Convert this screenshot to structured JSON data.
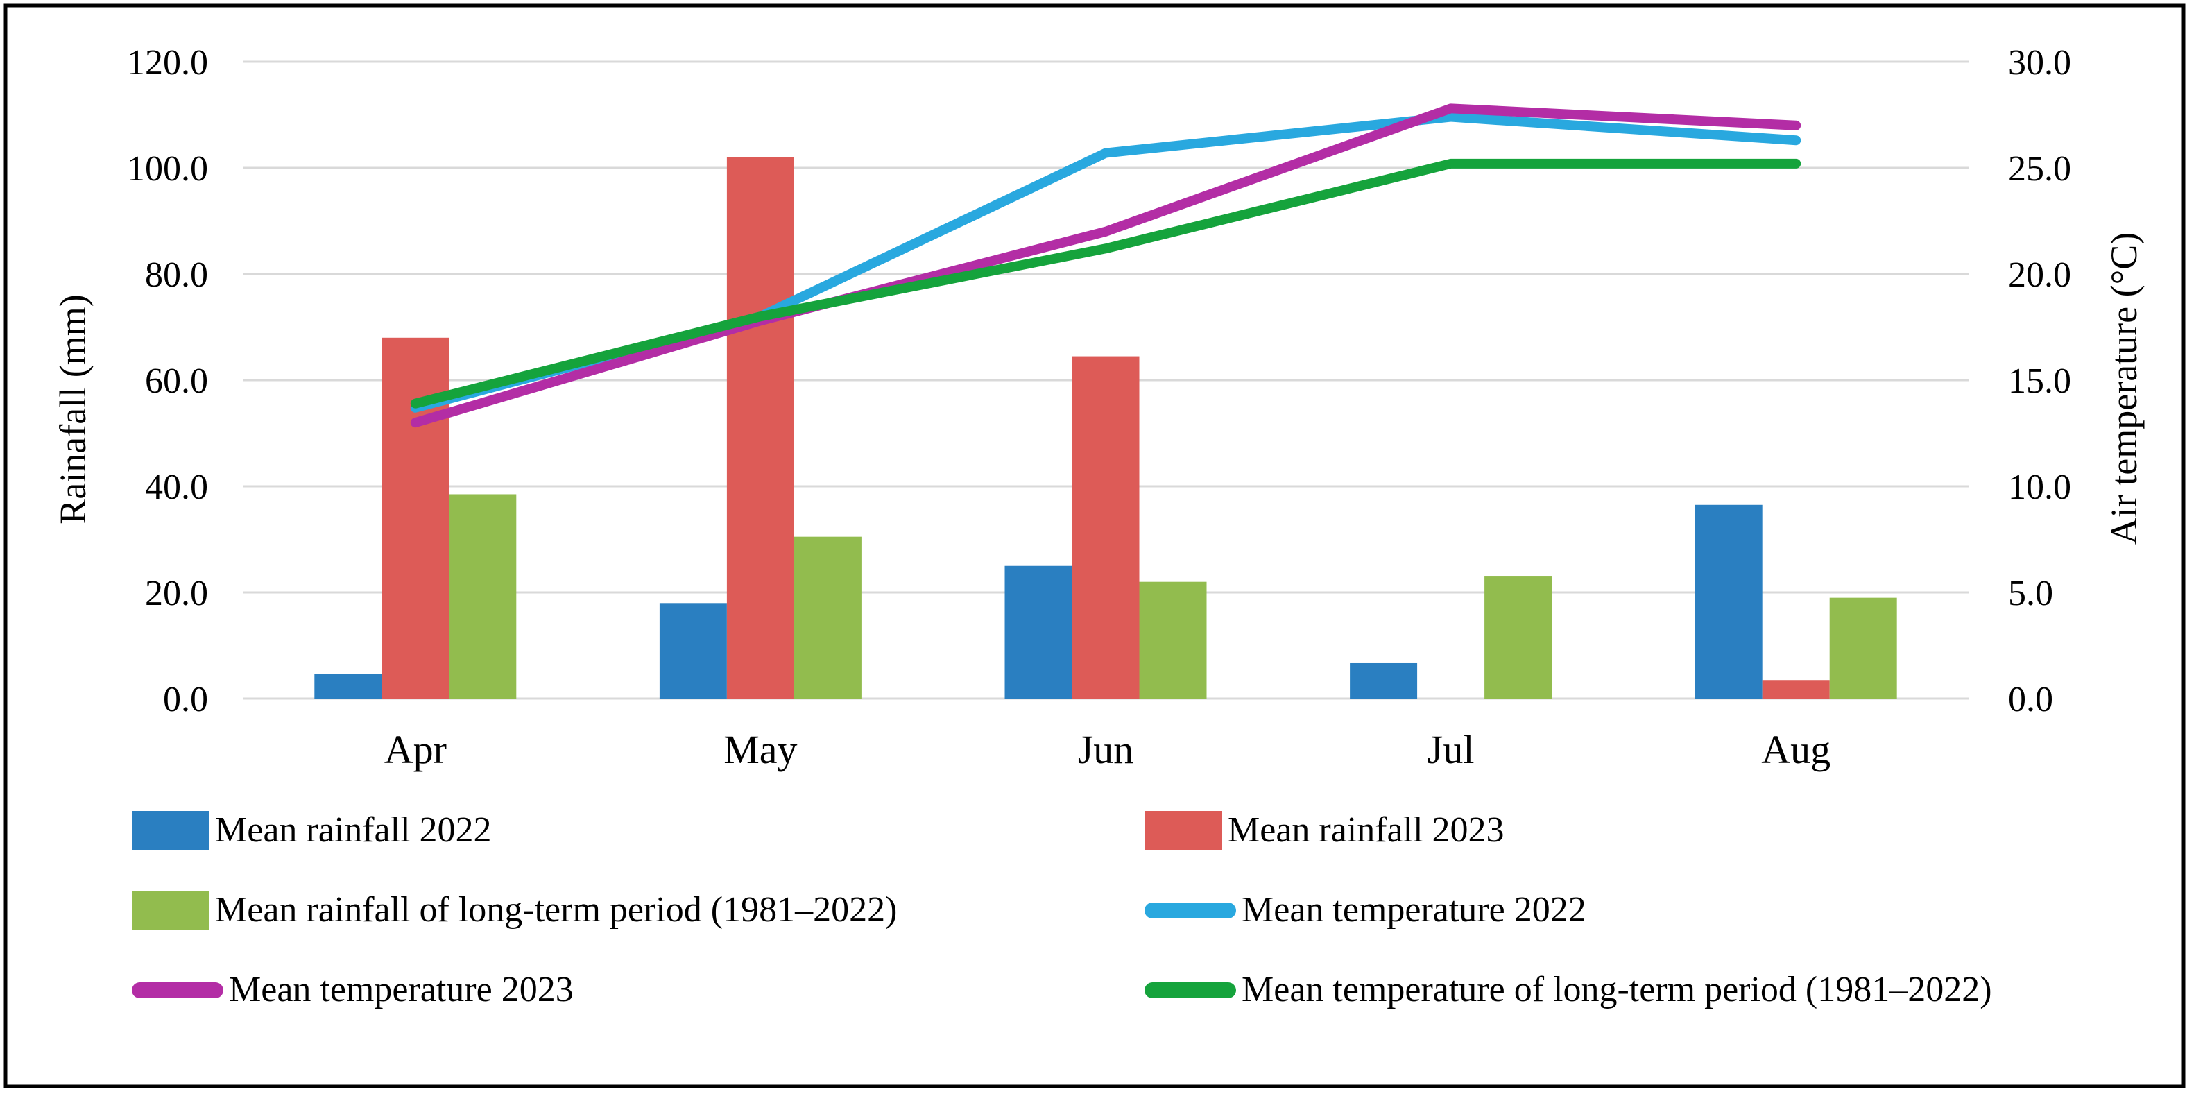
{
  "figure": {
    "background": "#ffffff",
    "border_color": "#000000"
  },
  "chart_data": {
    "type": "bar+line combo",
    "categories": [
      "Apr",
      "May",
      "Jun",
      "Jul",
      "Aug"
    ],
    "bar_series": [
      {
        "name": "Mean rainfall 2022",
        "color": "#2A7FC1",
        "axis": "left",
        "values": [
          4.7,
          18.0,
          25.0,
          6.8,
          36.5
        ]
      },
      {
        "name": "Mean rainfall 2023",
        "color": "#DD5B57",
        "axis": "left",
        "values": [
          68.0,
          102.0,
          64.5,
          0.0,
          3.5
        ]
      },
      {
        "name": "Mean rainfall of long-term period (1981–2022)",
        "color": "#92BC4E",
        "axis": "left",
        "values": [
          38.5,
          30.5,
          22.0,
          23.0,
          19.0
        ]
      }
    ],
    "line_series": [
      {
        "name": "Mean temperature 2022",
        "color": "#29A8DF",
        "axis": "right",
        "values": [
          13.7,
          18.0,
          25.7,
          27.4,
          26.3
        ]
      },
      {
        "name": "Mean temperature 2023",
        "color": "#B32DA5",
        "axis": "right",
        "values": [
          13.0,
          17.8,
          22.0,
          27.8,
          27.0
        ]
      },
      {
        "name": "Mean temperature of long-term period (1981–2022)",
        "color": "#15A33C",
        "axis": "right",
        "values": [
          13.9,
          18.0,
          21.2,
          25.2,
          25.2
        ]
      }
    ],
    "left_axis": {
      "label": "Rainafall (mm)",
      "ticks": [
        "0.0",
        "20.0",
        "40.0",
        "60.0",
        "80.0",
        "100.0",
        "120.0"
      ],
      "min": 0,
      "max": 120,
      "step": 20
    },
    "right_axis": {
      "label": "Air temperature (°C)",
      "ticks": [
        "0.0",
        "5.0",
        "10.0",
        "15.0",
        "20.0",
        "25.0",
        "30.0"
      ],
      "min": 0,
      "max": 30,
      "step": 5
    },
    "grid": "horizontal",
    "gridline_color": "#D9D9D9",
    "legend_position": "bottom two-column"
  },
  "legend": {
    "items": [
      {
        "label": "Mean rainfall 2022",
        "type": "bar",
        "color": "#2A7FC1"
      },
      {
        "label": "Mean rainfall 2023",
        "type": "bar",
        "color": "#DD5B57"
      },
      {
        "label": "Mean rainfall of long-term period (1981–2022)",
        "type": "bar",
        "color": "#92BC4E"
      },
      {
        "label": "Mean temperature 2022",
        "type": "line",
        "color": "#29A8DF"
      },
      {
        "label": "Mean temperature 2023",
        "type": "line",
        "color": "#B32DA5"
      },
      {
        "label": "Mean temperature of long-term period (1981–2022)",
        "type": "line",
        "color": "#15A33C"
      }
    ]
  }
}
